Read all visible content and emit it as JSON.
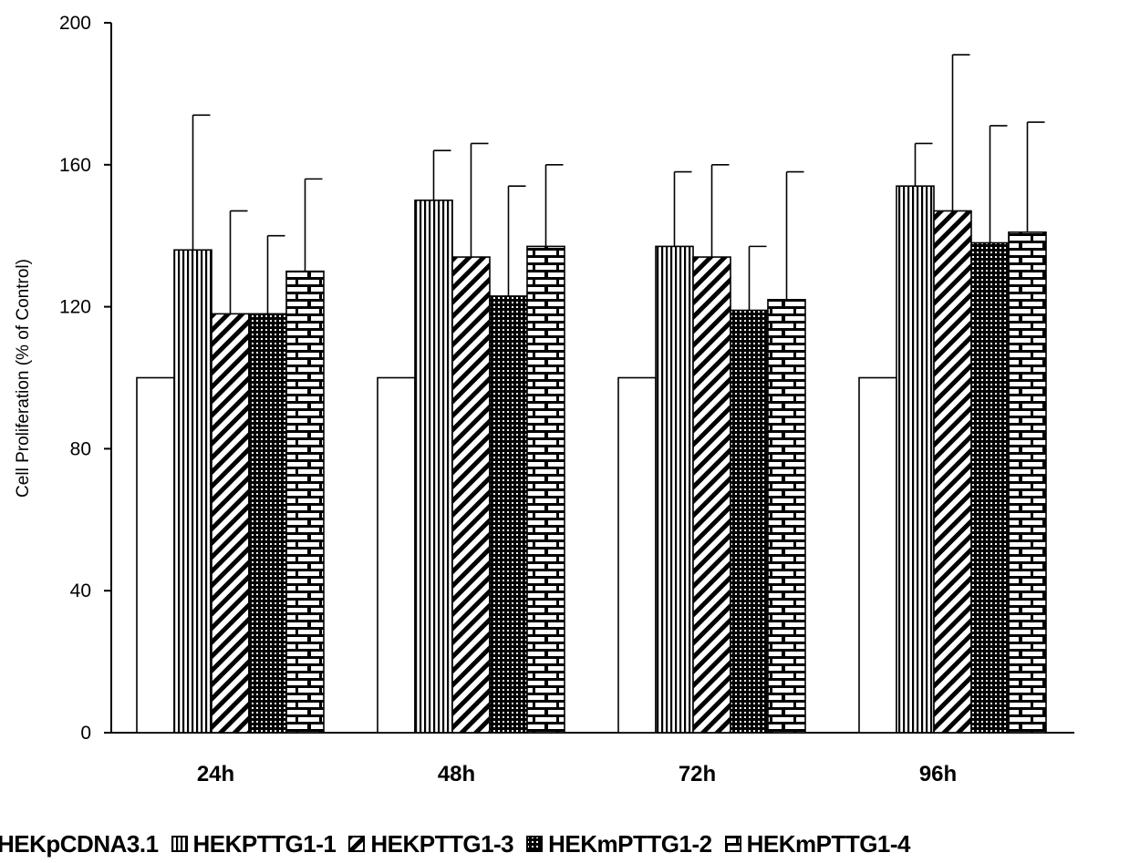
{
  "chart_data": {
    "type": "bar",
    "ylabel": "Cell Proliferation (% of Control)",
    "xlabel": "",
    "ylim": [
      0,
      200
    ],
    "yticks": [
      0,
      40,
      80,
      120,
      160,
      200
    ],
    "categories": [
      "24h",
      "48h",
      "72h",
      "96h"
    ],
    "grid": false,
    "legend_position": "bottom",
    "series": [
      {
        "name": "HEKpCDNA3.1",
        "pattern": "plain",
        "values": [
          100,
          100,
          100,
          100
        ],
        "errors": [
          0,
          0,
          0,
          0
        ]
      },
      {
        "name": "HEKPTTG1-1",
        "pattern": "vertical-lines",
        "values": [
          136,
          150,
          137,
          154
        ],
        "errors": [
          38,
          14,
          21,
          12
        ]
      },
      {
        "name": "HEKPTTG1-3",
        "pattern": "diagonal-lines",
        "values": [
          118,
          134,
          134,
          147
        ],
        "errors": [
          29,
          32,
          26,
          44
        ]
      },
      {
        "name": "HEKmPTTG1-2",
        "pattern": "dotted",
        "values": [
          118,
          123,
          119,
          138
        ],
        "errors": [
          22,
          31,
          18,
          33
        ]
      },
      {
        "name": "HEKmPTTG1-4",
        "pattern": "brick",
        "values": [
          130,
          137,
          122,
          141
        ],
        "errors": [
          26,
          23,
          36,
          31
        ]
      }
    ],
    "colors": {
      "bar_fill": "#ffffff",
      "stroke": "#000000"
    }
  }
}
